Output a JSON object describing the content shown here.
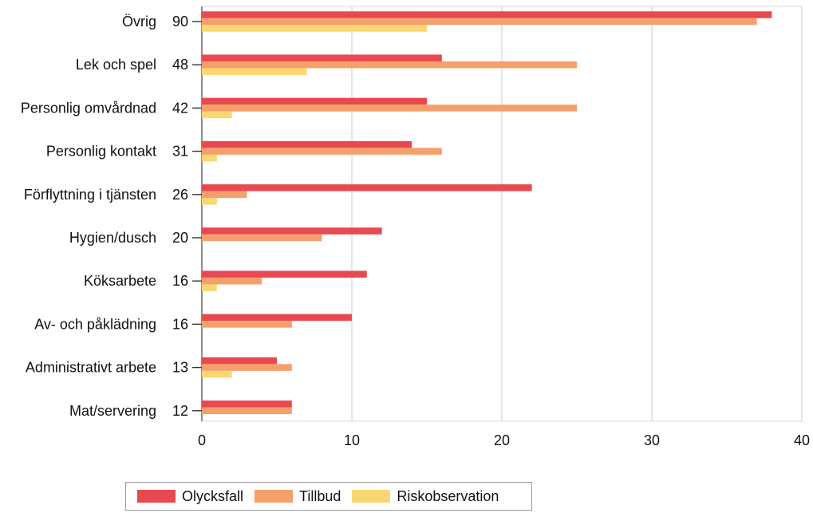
{
  "chart_data": {
    "type": "bar",
    "orientation": "horizontal",
    "categories": [
      "Övrig",
      "Lek och spel",
      "Personlig omvårdnad",
      "Personlig kontakt",
      "Förflyttning i tjänsten",
      "Hygien/dusch",
      "Köksarbete",
      "Av- och påklädning",
      "Administrativt arbete",
      "Mat/servering"
    ],
    "totals": [
      "90",
      "48",
      "42",
      "31",
      "26",
      "20",
      "16",
      "16",
      "13",
      "12"
    ],
    "series": [
      {
        "name": "Olycksfall",
        "color": "#e8484f",
        "values": [
          38,
          16,
          15,
          14,
          22,
          12,
          11,
          10,
          5,
          6
        ]
      },
      {
        "name": "Tillbud",
        "color": "#f4a06a",
        "values": [
          37,
          25,
          25,
          16,
          3,
          8,
          4,
          6,
          6,
          6
        ]
      },
      {
        "name": "Riskobservation",
        "color": "#fbd774",
        "values": [
          15,
          7,
          2,
          1,
          1,
          0,
          1,
          0,
          2,
          0
        ]
      }
    ],
    "xlim": [
      0,
      40
    ],
    "xticks": [
      "0",
      "10",
      "20",
      "30",
      "40"
    ],
    "xlabel": "",
    "ylabel": "",
    "grid": true,
    "legend_position": "bottom"
  }
}
